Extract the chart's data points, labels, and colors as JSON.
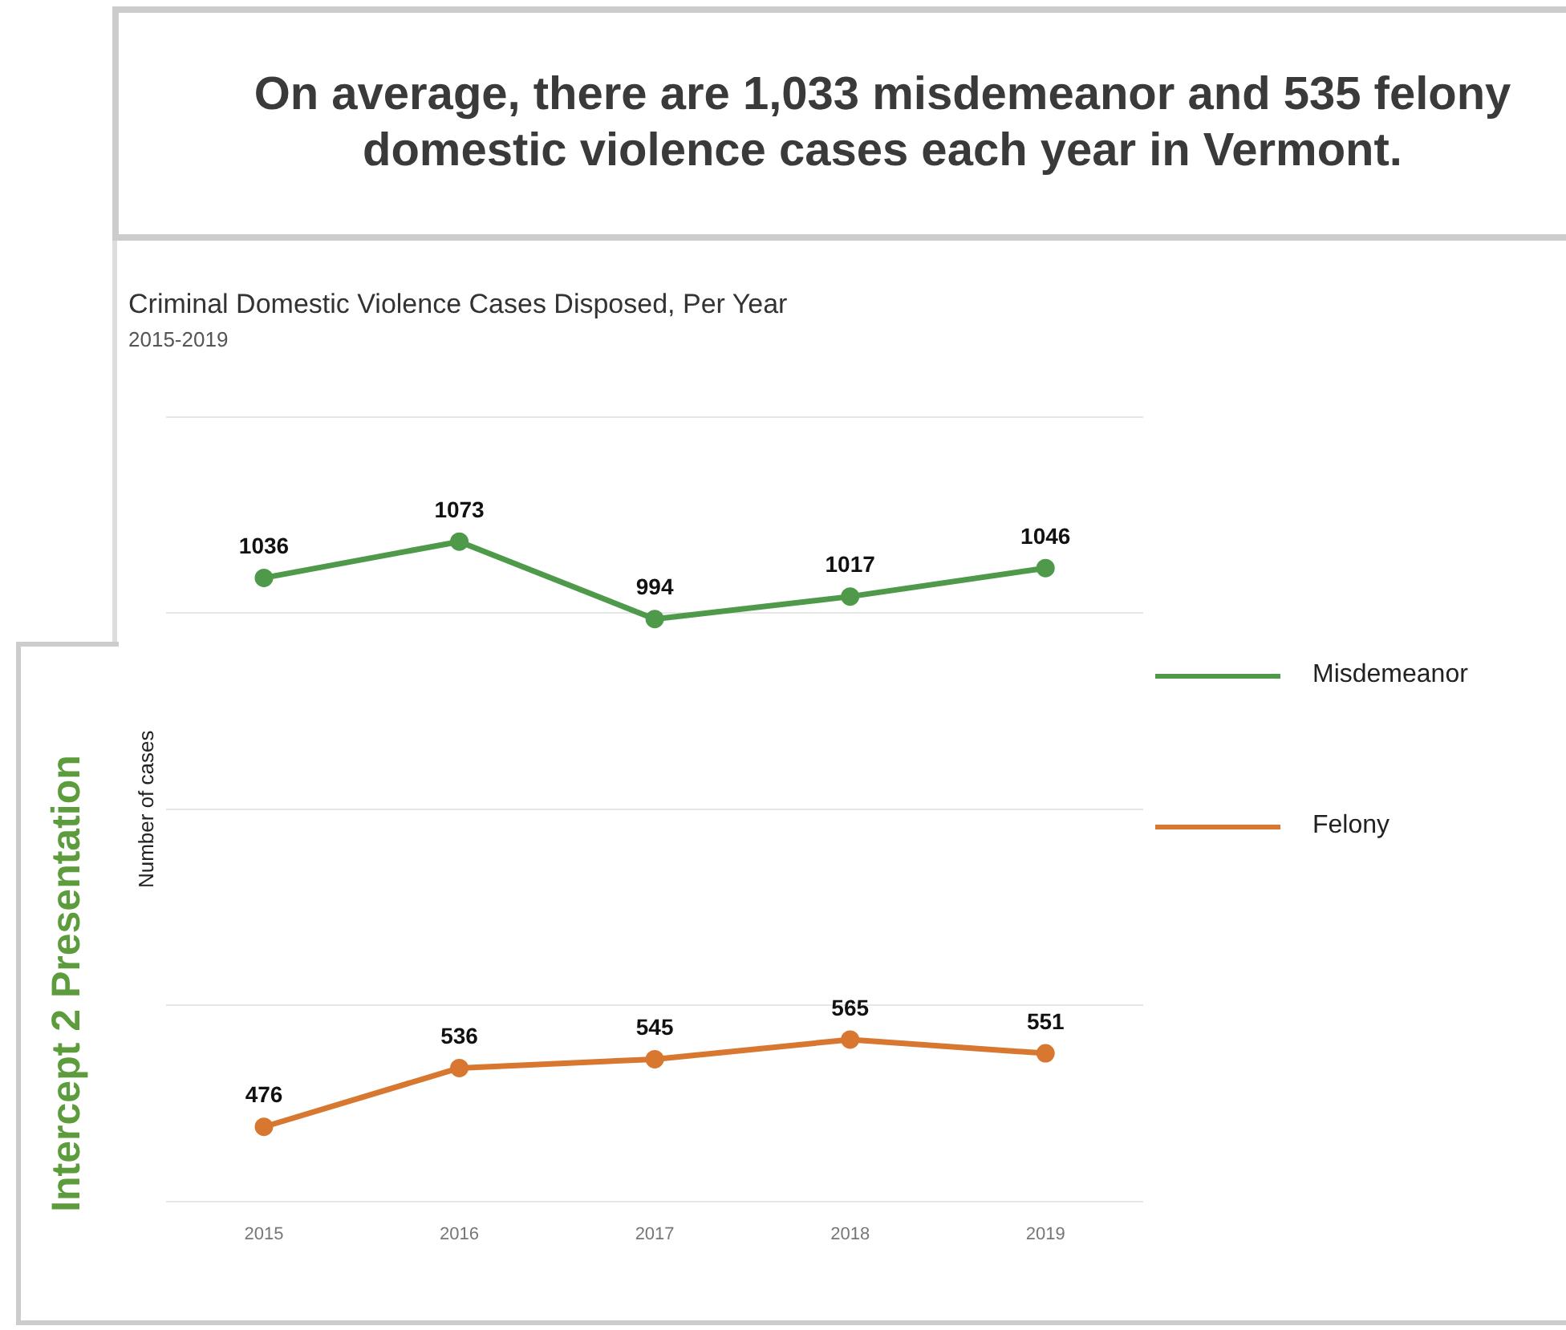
{
  "chart_data": {
    "type": "line",
    "title": "Criminal Domestic Violence Cases Disposed, Per Year",
    "subtitle": "2015-2019",
    "ylabel": "Number of cases",
    "annotations": [
      "On average, there are 1,033 misdemeanor and 535 felony domestic violence cases each year in Vermont.",
      "Intercept 2 Presentation"
    ],
    "categories": [
      "2015",
      "2016",
      "2017",
      "2018",
      "2019"
    ],
    "series": [
      {
        "name": "Misdemeanor",
        "color": "#4e9a4a",
        "values": [
          1036,
          1073,
          994,
          1017,
          1046
        ]
      },
      {
        "name": "Felony",
        "color": "#d8772f",
        "values": [
          476,
          536,
          545,
          565,
          551
        ]
      }
    ],
    "tick_labels": "x",
    "grid": "y",
    "legend": "right",
    "marker": "circle",
    "line_style": "solid",
    "data_labels": true
  }
}
